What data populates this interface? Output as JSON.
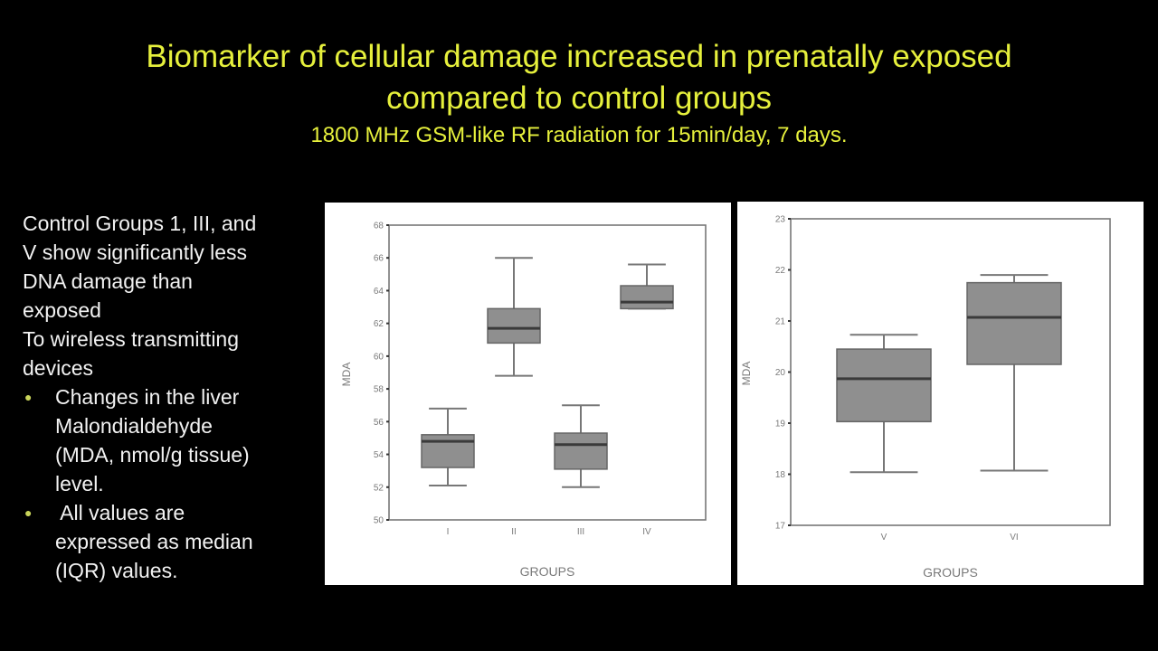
{
  "slide": {
    "title_line1": "Biomarker of cellular damage increased in prenatally exposed",
    "title_line2": "compared to control groups",
    "subtitle": "1800 MHz GSM-like RF radiation for 15min/day, 7 days.",
    "colors": {
      "background": "#000000",
      "title": "#e6f03c",
      "body_text": "#f2f2f2",
      "box_fill": "#8f8f8f",
      "median_line": "#3a3a3a"
    }
  },
  "notes": {
    "lines": [
      "Control Groups 1, III, and",
      "V show significantly less",
      "DNA damage than",
      "exposed",
      "To wireless transmitting",
      "devices"
    ],
    "bullets": [
      {
        "lines": [
          "Changes in the liver",
          "Malondialdehyde",
          "(MDA, nmol/g tissue)",
          "level."
        ]
      },
      {
        "lines": [
          " All values are",
          "expressed as median",
          "(IQR) values."
        ]
      }
    ]
  },
  "chart_data": [
    {
      "type": "box",
      "title": "",
      "xlabel": "GROUPS",
      "ylabel": "MDA",
      "ylim": [
        50,
        68
      ],
      "yticks": [
        50,
        52,
        54,
        56,
        58,
        60,
        62,
        64,
        66,
        68
      ],
      "grid": false,
      "categories": [
        "I",
        "II",
        "III",
        "IV"
      ],
      "series": [
        {
          "name": "I",
          "whisker_low": 52.1,
          "q1": 53.2,
          "median": 54.8,
          "q3": 55.2,
          "whisker_high": 56.8
        },
        {
          "name": "II",
          "whisker_low": 58.8,
          "q1": 60.8,
          "median": 61.7,
          "q3": 62.9,
          "whisker_high": 66.0
        },
        {
          "name": "III",
          "whisker_low": 52.0,
          "q1": 53.1,
          "median": 54.6,
          "q3": 55.3,
          "whisker_high": 57.0
        },
        {
          "name": "IV",
          "whisker_low": 62.9,
          "q1": 62.9,
          "median": 63.3,
          "q3": 64.3,
          "whisker_high": 65.6
        }
      ]
    },
    {
      "type": "box",
      "title": "",
      "xlabel": "GROUPS",
      "ylabel": "MDA",
      "ylim": [
        17,
        23
      ],
      "yticks": [
        17,
        18,
        19,
        20,
        21,
        22,
        23
      ],
      "grid": false,
      "categories": [
        "V",
        "VI"
      ],
      "series": [
        {
          "name": "V",
          "whisker_low": 18.04,
          "q1": 19.03,
          "median": 19.87,
          "q3": 20.45,
          "whisker_high": 20.73
        },
        {
          "name": "VI",
          "whisker_low": 18.07,
          "q1": 20.15,
          "median": 21.07,
          "q3": 21.75,
          "whisker_high": 21.9
        }
      ]
    }
  ]
}
